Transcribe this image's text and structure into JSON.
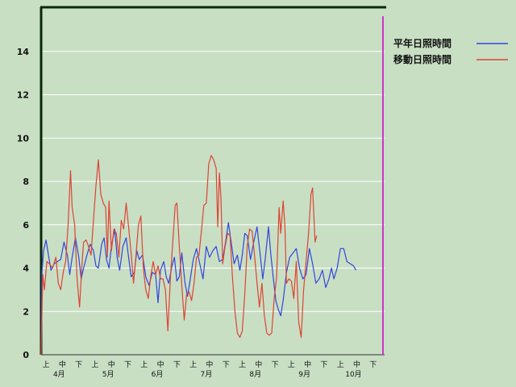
{
  "chart_data": {
    "type": "line",
    "ylim": [
      0,
      16
    ],
    "yticks": [
      "0",
      "2",
      "4",
      "6",
      "8",
      "10",
      "12",
      "14"
    ],
    "grid": "horizontal",
    "legend_position": "top-right",
    "xlim": [
      0,
      21
    ],
    "period_labels": [
      "上",
      "中",
      "下",
      "上",
      "中",
      "下",
      "上",
      "中",
      "下",
      "上",
      "中",
      "下",
      "上",
      "中",
      "下",
      "上",
      "中",
      "下",
      "上",
      "中",
      "下"
    ],
    "months": [
      {
        "label": "4月",
        "x": 1.0
      },
      {
        "label": "5月",
        "x": 4.0
      },
      {
        "label": "6月",
        "x": 7.0
      },
      {
        "label": "7月",
        "x": 10.0
      },
      {
        "label": "8月",
        "x": 13.0
      },
      {
        "label": "9月",
        "x": 16.0
      },
      {
        "label": "10月",
        "x": 19.0
      }
    ],
    "colors": {
      "background": "#c8dfc4",
      "grid": "#ffffff",
      "axis": "#0a2a0a",
      "marker_line": "#cc33cc"
    },
    "series": [
      {
        "name": "平年日照時間",
        "color": "#3344dd",
        "points": [
          [
            0,
            0
          ],
          [
            0.05,
            3.8
          ],
          [
            0.15,
            4.8
          ],
          [
            0.3,
            5.3
          ],
          [
            0.45,
            4.6
          ],
          [
            0.6,
            3.9
          ],
          [
            0.8,
            4.2
          ],
          [
            1.0,
            4.3
          ],
          [
            1.2,
            4.4
          ],
          [
            1.4,
            5.2
          ],
          [
            1.6,
            4.6
          ],
          [
            1.75,
            3.7
          ],
          [
            1.9,
            4.5
          ],
          [
            2.1,
            5.4
          ],
          [
            2.3,
            4.5
          ],
          [
            2.45,
            3.5
          ],
          [
            2.6,
            4.0
          ],
          [
            2.8,
            4.6
          ],
          [
            3.0,
            5.1
          ],
          [
            3.2,
            4.8
          ],
          [
            3.35,
            4.1
          ],
          [
            3.5,
            4.0
          ],
          [
            3.7,
            5.1
          ],
          [
            3.85,
            5.4
          ],
          [
            4.0,
            4.4
          ],
          [
            4.15,
            4.0
          ],
          [
            4.3,
            5.0
          ],
          [
            4.5,
            5.8
          ],
          [
            4.65,
            4.5
          ],
          [
            4.8,
            3.9
          ],
          [
            5.0,
            5.0
          ],
          [
            5.2,
            5.4
          ],
          [
            5.35,
            4.5
          ],
          [
            5.5,
            3.6
          ],
          [
            5.7,
            3.8
          ],
          [
            5.85,
            4.8
          ],
          [
            6.0,
            4.4
          ],
          [
            6.2,
            4.6
          ],
          [
            6.4,
            3.6
          ],
          [
            6.6,
            3.2
          ],
          [
            6.8,
            3.8
          ],
          [
            7.0,
            3.7
          ],
          [
            7.15,
            2.4
          ],
          [
            7.3,
            3.9
          ],
          [
            7.5,
            4.3
          ],
          [
            7.65,
            3.6
          ],
          [
            7.8,
            3.3
          ],
          [
            8.0,
            4.1
          ],
          [
            8.15,
            4.5
          ],
          [
            8.3,
            3.4
          ],
          [
            8.45,
            3.6
          ],
          [
            8.6,
            4.7
          ],
          [
            8.8,
            3.3
          ],
          [
            8.95,
            2.7
          ],
          [
            9.1,
            3.4
          ],
          [
            9.3,
            4.4
          ],
          [
            9.5,
            4.9
          ],
          [
            9.7,
            4.2
          ],
          [
            9.9,
            3.5
          ],
          [
            10.1,
            5.0
          ],
          [
            10.3,
            4.5
          ],
          [
            10.5,
            4.8
          ],
          [
            10.7,
            5.0
          ],
          [
            10.9,
            4.3
          ],
          [
            11.1,
            4.4
          ],
          [
            11.3,
            5.3
          ],
          [
            11.45,
            6.1
          ],
          [
            11.6,
            5.3
          ],
          [
            11.8,
            4.2
          ],
          [
            12.0,
            4.6
          ],
          [
            12.15,
            3.9
          ],
          [
            12.3,
            4.6
          ],
          [
            12.45,
            5.6
          ],
          [
            12.6,
            5.5
          ],
          [
            12.8,
            4.4
          ],
          [
            13.0,
            5.2
          ],
          [
            13.2,
            5.9
          ],
          [
            13.4,
            4.6
          ],
          [
            13.55,
            3.5
          ],
          [
            13.7,
            4.4
          ],
          [
            13.9,
            5.9
          ],
          [
            14.05,
            4.6
          ],
          [
            14.2,
            3.5
          ],
          [
            14.35,
            2.5
          ],
          [
            14.5,
            2.1
          ],
          [
            14.65,
            1.8
          ],
          [
            14.8,
            2.5
          ],
          [
            15.0,
            3.8
          ],
          [
            15.2,
            4.5
          ],
          [
            15.4,
            4.7
          ],
          [
            15.6,
            4.9
          ],
          [
            15.8,
            4.0
          ],
          [
            16.0,
            3.5
          ],
          [
            16.2,
            3.7
          ],
          [
            16.4,
            4.9
          ],
          [
            16.6,
            4.2
          ],
          [
            16.8,
            3.3
          ],
          [
            17.0,
            3.5
          ],
          [
            17.2,
            3.9
          ],
          [
            17.4,
            3.1
          ],
          [
            17.6,
            3.5
          ],
          [
            17.75,
            4.0
          ],
          [
            17.9,
            3.5
          ],
          [
            18.1,
            4.0
          ],
          [
            18.3,
            4.9
          ],
          [
            18.5,
            4.9
          ],
          [
            18.7,
            4.3
          ],
          [
            18.9,
            4.2
          ],
          [
            19.1,
            4.1
          ],
          [
            19.25,
            3.9
          ]
        ]
      },
      {
        "name": "移動日照時間",
        "color": "#dd4433",
        "points": [
          [
            0,
            0
          ],
          [
            0.1,
            3.7
          ],
          [
            0.2,
            3.0
          ],
          [
            0.35,
            4.3
          ],
          [
            0.5,
            4.2
          ],
          [
            0.7,
            4.0
          ],
          [
            0.9,
            4.5
          ],
          [
            1.05,
            3.3
          ],
          [
            1.2,
            3.0
          ],
          [
            1.35,
            3.8
          ],
          [
            1.5,
            4.3
          ],
          [
            1.65,
            6.0
          ],
          [
            1.8,
            8.5
          ],
          [
            1.9,
            6.8
          ],
          [
            2.05,
            6.0
          ],
          [
            2.2,
            3.5
          ],
          [
            2.35,
            2.2
          ],
          [
            2.5,
            4.2
          ],
          [
            2.6,
            5.2
          ],
          [
            2.75,
            5.3
          ],
          [
            2.9,
            5.0
          ],
          [
            3.05,
            4.6
          ],
          [
            3.2,
            6.2
          ],
          [
            3.35,
            7.8
          ],
          [
            3.5,
            9.0
          ],
          [
            3.65,
            7.4
          ],
          [
            3.8,
            7.0
          ],
          [
            3.95,
            6.8
          ],
          [
            4.05,
            4.5
          ],
          [
            4.15,
            7.1
          ],
          [
            4.3,
            4.8
          ],
          [
            4.45,
            5.8
          ],
          [
            4.6,
            5.6
          ],
          [
            4.75,
            4.5
          ],
          [
            4.9,
            6.2
          ],
          [
            5.05,
            5.8
          ],
          [
            5.2,
            7.0
          ],
          [
            5.35,
            5.9
          ],
          [
            5.5,
            4.7
          ],
          [
            5.65,
            3.3
          ],
          [
            5.8,
            4.6
          ],
          [
            5.95,
            6.0
          ],
          [
            6.1,
            6.4
          ],
          [
            6.25,
            4.0
          ],
          [
            6.4,
            3.0
          ],
          [
            6.55,
            2.6
          ],
          [
            6.7,
            3.6
          ],
          [
            6.85,
            4.3
          ],
          [
            7.0,
            3.7
          ],
          [
            7.15,
            4.1
          ],
          [
            7.3,
            3.5
          ],
          [
            7.45,
            3.5
          ],
          [
            7.6,
            3.0
          ],
          [
            7.75,
            1.1
          ],
          [
            7.9,
            3.5
          ],
          [
            8.05,
            5.2
          ],
          [
            8.2,
            6.9
          ],
          [
            8.3,
            7.0
          ],
          [
            8.45,
            5.0
          ],
          [
            8.6,
            3.2
          ],
          [
            8.75,
            1.6
          ],
          [
            8.9,
            2.8
          ],
          [
            9.05,
            2.9
          ],
          [
            9.2,
            2.5
          ],
          [
            9.35,
            3.3
          ],
          [
            9.5,
            4.5
          ],
          [
            9.65,
            4.6
          ],
          [
            9.8,
            5.7
          ],
          [
            9.95,
            6.9
          ],
          [
            10.1,
            7.0
          ],
          [
            10.25,
            8.8
          ],
          [
            10.4,
            9.2
          ],
          [
            10.55,
            9.0
          ],
          [
            10.7,
            8.6
          ],
          [
            10.8,
            5.9
          ],
          [
            10.9,
            8.4
          ],
          [
            11.0,
            7.2
          ],
          [
            11.1,
            4.2
          ],
          [
            11.25,
            5.0
          ],
          [
            11.4,
            5.6
          ],
          [
            11.55,
            5.5
          ],
          [
            11.7,
            3.6
          ],
          [
            11.85,
            2.0
          ],
          [
            12.0,
            1.0
          ],
          [
            12.15,
            0.8
          ],
          [
            12.3,
            1.1
          ],
          [
            12.45,
            2.8
          ],
          [
            12.6,
            5.0
          ],
          [
            12.75,
            5.8
          ],
          [
            12.9,
            5.7
          ],
          [
            13.05,
            4.6
          ],
          [
            13.2,
            3.3
          ],
          [
            13.35,
            2.2
          ],
          [
            13.5,
            3.3
          ],
          [
            13.65,
            1.8
          ],
          [
            13.8,
            1.0
          ],
          [
            13.95,
            0.9
          ],
          [
            14.1,
            1.0
          ],
          [
            14.25,
            2.6
          ],
          [
            14.4,
            3.6
          ],
          [
            14.55,
            6.8
          ],
          [
            14.65,
            5.6
          ],
          [
            14.8,
            7.1
          ],
          [
            14.9,
            6.0
          ],
          [
            15.0,
            3.3
          ],
          [
            15.15,
            3.5
          ],
          [
            15.3,
            3.4
          ],
          [
            15.45,
            2.6
          ],
          [
            15.6,
            4.3
          ],
          [
            15.75,
            1.5
          ],
          [
            15.9,
            0.8
          ],
          [
            16.05,
            3.0
          ],
          [
            16.2,
            4.3
          ],
          [
            16.35,
            5.6
          ],
          [
            16.5,
            7.4
          ],
          [
            16.6,
            7.7
          ],
          [
            16.75,
            5.2
          ],
          [
            16.85,
            5.5
          ]
        ]
      }
    ]
  }
}
